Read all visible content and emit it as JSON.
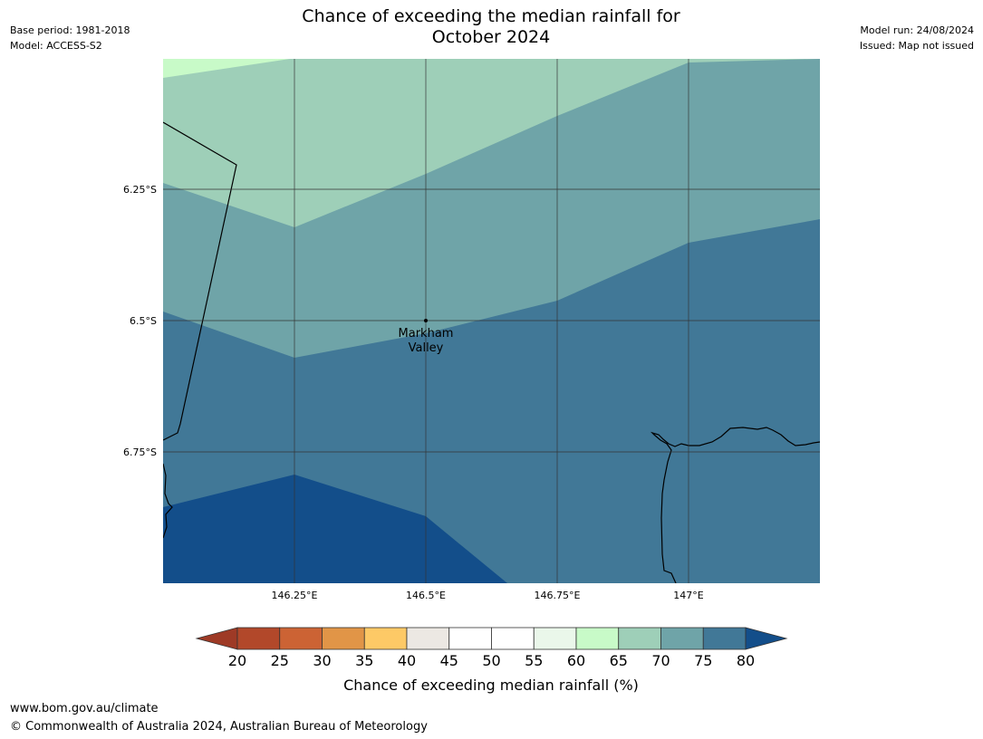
{
  "title": {
    "line1": "Chance of exceeding the median rainfall for",
    "line2": "October 2024"
  },
  "meta_left": {
    "base_period": "Base period: 1981-2018",
    "model": "Model: ACCESS-S2"
  },
  "meta_right": {
    "model_run": "Model run: 24/08/2024",
    "issued": "Issued: Map not issued"
  },
  "map": {
    "lat_labels": [
      "6.25°S",
      "6.5°S",
      "6.75°S"
    ],
    "lon_labels": [
      "146.25°E",
      "146.5°E",
      "146.75°E",
      "147°E"
    ],
    "place": {
      "line1": "Markham",
      "line2": "Valley"
    }
  },
  "colorbar": {
    "label": "Chance of exceeding median rainfall (%)",
    "ticks": [
      "20",
      "25",
      "30",
      "35",
      "40",
      "45",
      "50",
      "55",
      "60",
      "65",
      "70",
      "75",
      "80"
    ],
    "under_color": "#9e3a26",
    "over_color": "#134e8a",
    "colors": [
      "#b2482a",
      "#cc6334",
      "#e19547",
      "#fdc966",
      "#ece8e3",
      "#ffffff",
      "#ffffff",
      "#eaf7ea",
      "#c8fac8",
      "#9ecfb8",
      "#6fa4a8",
      "#417897"
    ]
  },
  "map_colors": {
    "band_60_65": "#c8fac8",
    "band_65_70": "#9ecfb8",
    "band_70_75": "#6fa4a8",
    "band_75_80": "#417897",
    "band_80_plus": "#134e8a"
  },
  "footer": {
    "url": "www.bom.gov.au/climate",
    "copyright": "© Commonwealth of Australia 2024, Australian Bureau of Meteorology"
  }
}
